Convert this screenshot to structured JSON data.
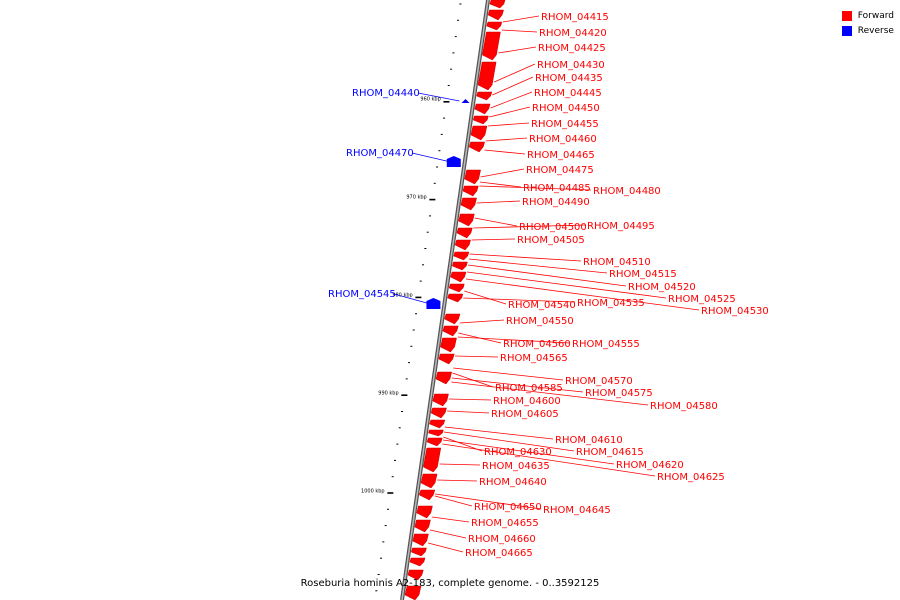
{
  "caption": "Roseburia hominis A2-183, complete genome. - 0..3592125",
  "legend": [
    {
      "label": "Forward",
      "color": "#ff0000"
    },
    {
      "label": "Reverse",
      "color": "#0000ff"
    }
  ],
  "colors": {
    "forward": "#ff0000",
    "reverse": "#0000ff",
    "backbone": "#888888"
  },
  "scale_ticks": [
    "960 kbp",
    "970 kbp",
    "980 kbp",
    "990 kbp",
    "1000 kbp"
  ],
  "reverse_genes": [
    "RHOM_04440",
    "RHOM_04470",
    "RHOM_04545"
  ],
  "forward_genes": [
    "RHOM_04415",
    "RHOM_04420",
    "RHOM_04425",
    "RHOM_04430",
    "RHOM_04435",
    "RHOM_04445",
    "RHOM_04450",
    "RHOM_04455",
    "RHOM_04460",
    "RHOM_04465",
    "RHOM_04475",
    "RHOM_04485",
    "RHOM_04480",
    "RHOM_04490",
    "RHOM_04500",
    "RHOM_04495",
    "RHOM_04505",
    "RHOM_04510",
    "RHOM_04515",
    "RHOM_04520",
    "RHOM_04525",
    "RHOM_04530",
    "RHOM_04540",
    "RHOM_04535",
    "RHOM_04550",
    "RHOM_04560",
    "RHOM_04555",
    "RHOM_04565",
    "RHOM_04570",
    "RHOM_04585",
    "RHOM_04575",
    "RHOM_04580",
    "RHOM_04600",
    "RHOM_04605",
    "RHOM_04610",
    "RHOM_04615",
    "RHOM_04630",
    "RHOM_04620",
    "RHOM_04635",
    "RHOM_04625",
    "RHOM_04640",
    "RHOM_04650",
    "RHOM_04645",
    "RHOM_04655",
    "RHOM_04660",
    "RHOM_04665"
  ]
}
